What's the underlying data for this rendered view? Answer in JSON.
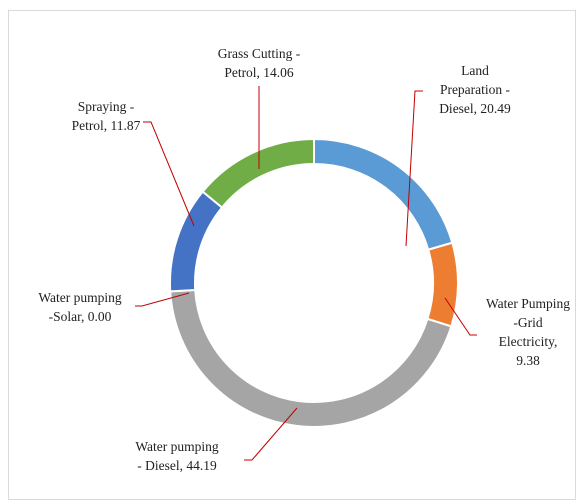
{
  "chart_data": {
    "type": "donut",
    "title": "",
    "categories": [
      "Land Preparation - Diesel",
      "Water Pumping -Grid Electricity",
      "Water pumping - Diesel",
      "Water pumping -Solar",
      "Spraying - Petrol",
      "Grass Cutting - Petrol"
    ],
    "values": [
      20.49,
      9.38,
      44.19,
      0.0,
      11.87,
      14.06
    ],
    "colors": [
      "#5b9bd5",
      "#ed7d31",
      "#a5a5a5",
      "#ffc000",
      "#4472c4",
      "#70ad47"
    ],
    "labels": [
      {
        "lines": [
          "Land",
          "Preparation -",
          "Diesel,  20.49"
        ]
      },
      {
        "lines": [
          "Water Pumping",
          "-Grid",
          "Electricity,",
          "9.38"
        ]
      },
      {
        "lines": [
          "Water pumping",
          "- Diesel,  44.19"
        ]
      },
      {
        "lines": [
          "Water pumping",
          "-Solar, 0.00"
        ]
      },
      {
        "lines": [
          "Spraying -",
          "Petrol, 11.87"
        ]
      },
      {
        "lines": [
          "Grass Cutting  -",
          "Petrol, 14.06"
        ]
      }
    ],
    "legend": "none",
    "data_labels": "outside-with-leader-lines"
  }
}
